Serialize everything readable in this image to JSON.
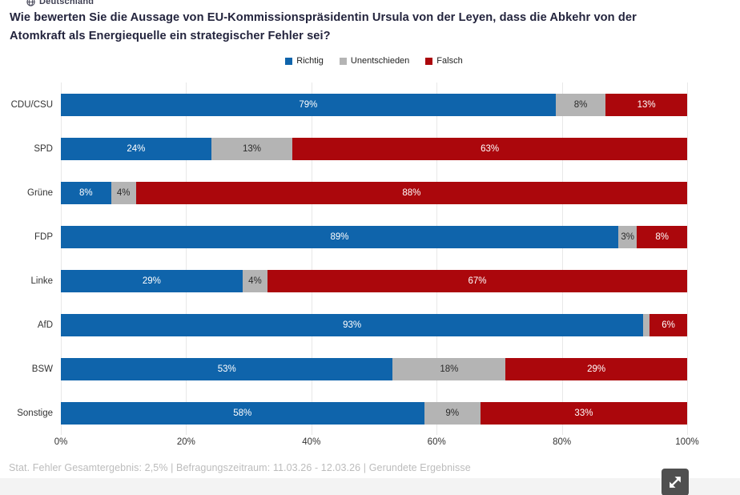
{
  "header": {
    "region_label": "Deutschland"
  },
  "title": "Wie bewerten Sie die Aussage von EU-Kommissionspräsidentin Ursula von der Leyen, dass die Abkehr von der Atomkraft als Energiequelle ein strategischer Fehler sei?",
  "legend": [
    {
      "label": "Richtig",
      "color": "#0f64ab"
    },
    {
      "label": "Unentschieden",
      "color": "#b4b4b4"
    },
    {
      "label": "Falsch",
      "color": "#ab070c"
    }
  ],
  "chart_data": {
    "type": "bar",
    "orientation": "horizontal",
    "stacked": true,
    "title": "Wie bewerten Sie die Aussage von EU-Kommissionspräsidentin Ursula von der Leyen, dass die Abkehr von der Atomkraft als Energiequelle ein strategischer Fehler sei?",
    "categories": [
      "CDU/CSU",
      "SPD",
      "Grüne",
      "FDP",
      "Linke",
      "AfD",
      "BSW",
      "Sonstige"
    ],
    "series": [
      {
        "name": "Richtig",
        "color": "#0f64ab",
        "label_color": "#ffffff",
        "values": [
          79,
          24,
          8,
          89,
          29,
          93,
          53,
          58
        ]
      },
      {
        "name": "Unentschieden",
        "color": "#b4b4b4",
        "label_color": "#2b2b2b",
        "values": [
          8,
          13,
          4,
          3,
          4,
          1,
          18,
          9
        ]
      },
      {
        "name": "Falsch",
        "color": "#ab070c",
        "label_color": "#ffffff",
        "values": [
          13,
          63,
          88,
          8,
          67,
          6,
          29,
          33
        ]
      }
    ],
    "value_suffix": "%",
    "label_min_value_to_show": 3,
    "x_ticks": [
      "0%",
      "20%",
      "40%",
      "60%",
      "80%",
      "100%"
    ],
    "xlim": [
      0,
      100
    ],
    "grid": true,
    "legend_position": "top",
    "xlabel": "",
    "ylabel": ""
  },
  "footer": {
    "note": "Stat. Fehler Gesamtergebnis: 2,5% | Befragungszeitraum: 11.03.26 - 12.03.26 | Gerundete Ergebnisse"
  },
  "controls": {
    "expand_button": "expand-icon"
  }
}
